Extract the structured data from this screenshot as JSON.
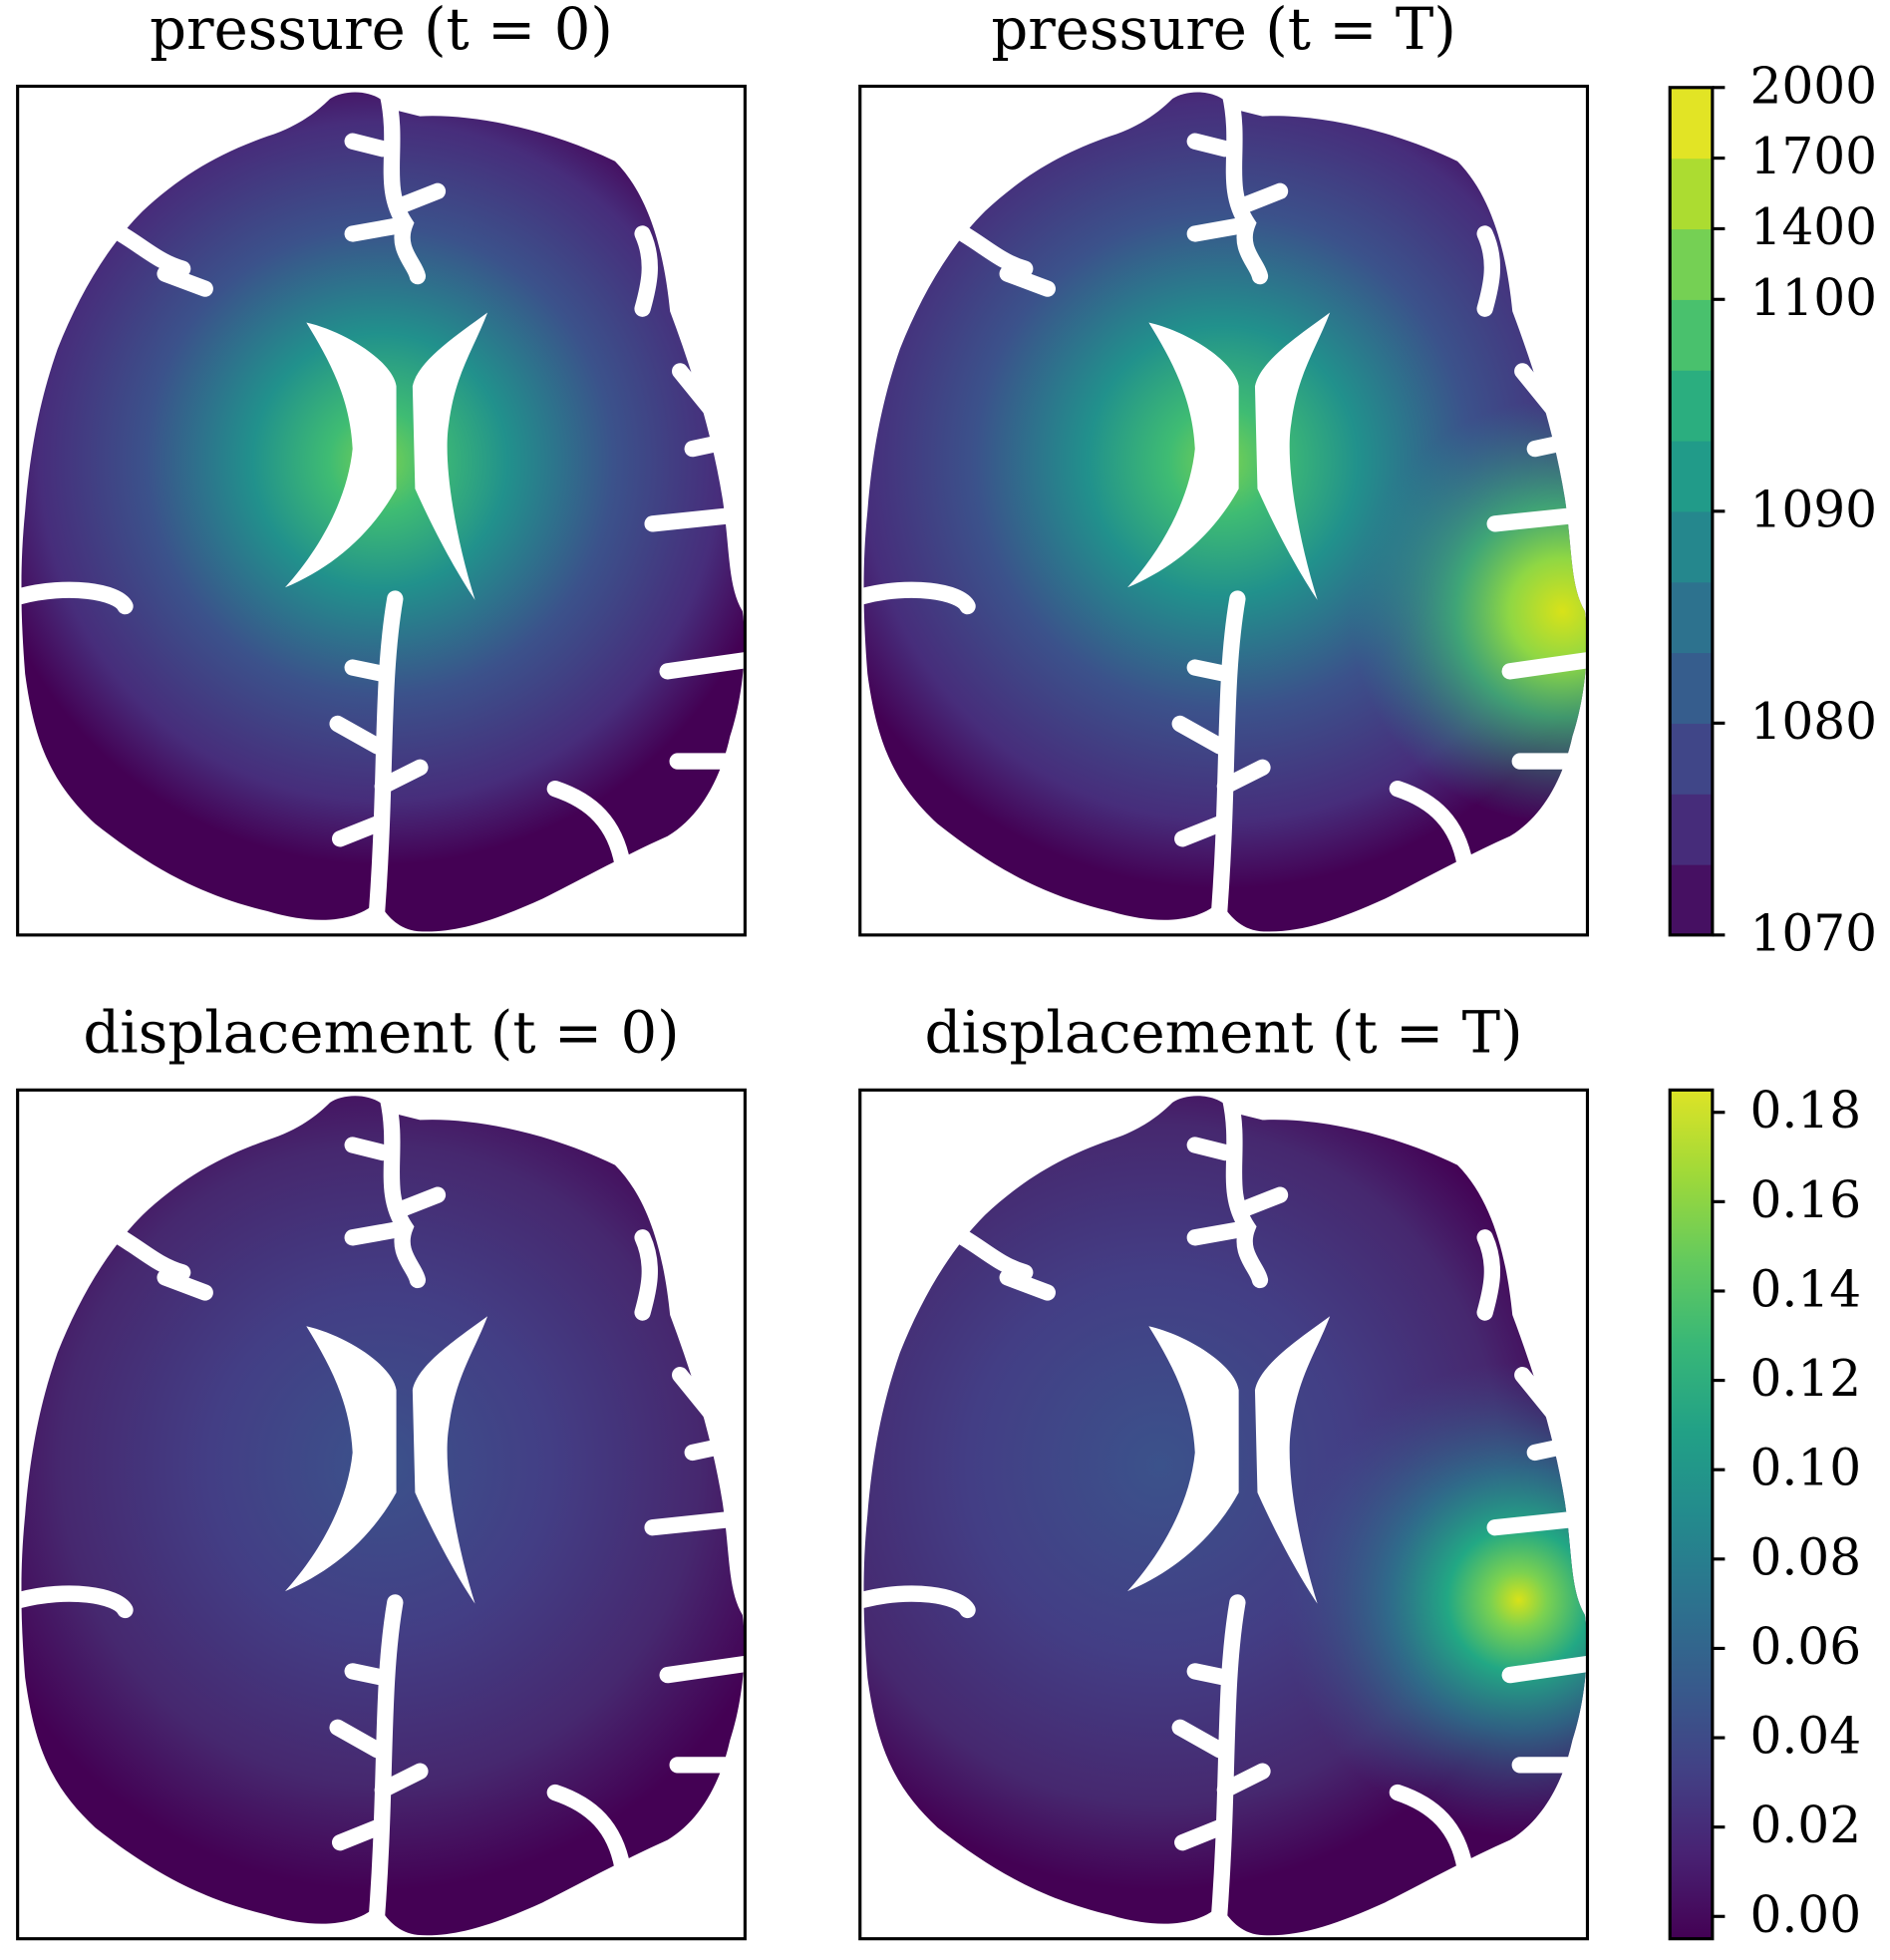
{
  "chart_data": [
    {
      "type": "field",
      "title": "pressure (t = 0)"
    },
    {
      "type": "field",
      "title": "pressure (t = T)"
    },
    {
      "type": "field",
      "title": "displacement (t = 0)"
    },
    {
      "type": "field",
      "title": "displacement (t = T)"
    },
    {
      "type": "colorbar",
      "levels": [
        1070,
        1073.33,
        1076.67,
        1080,
        1083.33,
        1086.67,
        1090,
        1093.33,
        1096.67,
        1100,
        1400,
        1700,
        2000
      ],
      "ylim": [
        1070,
        2000
      ],
      "yticks": [
        1070,
        1080,
        1090,
        1100,
        1400,
        1700,
        2000
      ]
    },
    {
      "type": "colorbar",
      "ylim": [
        -0.005,
        0.185
      ],
      "yticks": [
        {
          "value": 0,
          "label": "0.00"
        },
        {
          "value": 0.02,
          "label": "0.02"
        },
        {
          "value": 0.04,
          "label": "0.04"
        },
        {
          "value": 0.06,
          "label": "0.06"
        },
        {
          "value": 0.08,
          "label": "0.08"
        },
        {
          "value": 0.1,
          "label": "0.10"
        },
        {
          "value": 0.12,
          "label": "0.12"
        },
        {
          "value": 0.14,
          "label": "0.14"
        },
        {
          "value": 0.16,
          "label": "0.16"
        },
        {
          "value": 0.18,
          "label": "0.18"
        }
      ]
    }
  ]
}
